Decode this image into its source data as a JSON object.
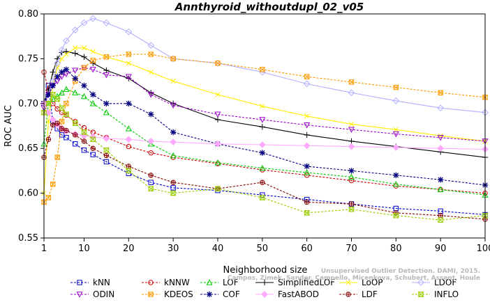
{
  "chart_data": {
    "type": "line",
    "title": "Annthyroid_withoutdupl_02_v05",
    "xlabel": "Neighborhood size",
    "ylabel": "ROC AUC",
    "xlim": [
      1,
      100
    ],
    "ylim": [
      0.55,
      0.8
    ],
    "xticks": [
      "1",
      "10",
      "20",
      "30",
      "40",
      "50",
      "60",
      "70",
      "80",
      "90",
      "100"
    ],
    "yticks": [
      "0.55",
      "0.60",
      "0.65",
      "0.70",
      "0.75",
      "0.80"
    ],
    "grid": false,
    "legend_position": "bottom",
    "watermark": [
      "Unsupervised Outlier Detection. DAMI, 2015.",
      "Campos, Zimek, Sander, Campello, Micenkova, Schubert, Assent, Houle"
    ],
    "series": [
      {
        "name": "kNN",
        "color": "#0000cc",
        "marker": "square",
        "line": "dashed",
        "x": [
          1,
          2,
          3,
          4,
          5,
          6,
          8,
          10,
          12,
          15,
          20,
          25,
          30,
          40,
          50,
          60,
          70,
          80,
          90,
          100
        ],
        "y": [
          0.7,
          0.72,
          0.68,
          0.672,
          0.665,
          0.662,
          0.655,
          0.648,
          0.643,
          0.635,
          0.622,
          0.612,
          0.606,
          0.603,
          0.598,
          0.593,
          0.588,
          0.583,
          0.58,
          0.576
        ]
      },
      {
        "name": "kNNW",
        "color": "#cc0000",
        "marker": "circle",
        "line": "dashed",
        "x": [
          1,
          2,
          3,
          4,
          5,
          6,
          8,
          10,
          12,
          15,
          20,
          25,
          30,
          40,
          50,
          60,
          70,
          80,
          90,
          100
        ],
        "y": [
          0.735,
          0.715,
          0.7,
          0.694,
          0.69,
          0.687,
          0.68,
          0.673,
          0.668,
          0.662,
          0.652,
          0.645,
          0.64,
          0.633,
          0.626,
          0.62,
          0.614,
          0.608,
          0.604,
          0.6
        ]
      },
      {
        "name": "LOF",
        "color": "#00cc00",
        "marker": "triangle",
        "line": "dashed",
        "x": [
          1,
          2,
          3,
          4,
          5,
          6,
          8,
          10,
          12,
          15,
          20,
          25,
          30,
          40,
          50,
          60,
          70,
          80,
          90,
          100
        ],
        "y": [
          0.655,
          0.7,
          0.705,
          0.708,
          0.712,
          0.716,
          0.712,
          0.708,
          0.7,
          0.69,
          0.672,
          0.655,
          0.642,
          0.634,
          0.628,
          0.623,
          0.618,
          0.61,
          0.604,
          0.598
        ]
      },
      {
        "name": "SimplifiedLOF",
        "color": "#000000",
        "marker": "plus",
        "line": "solid",
        "x": [
          1,
          2,
          3,
          4,
          5,
          6,
          8,
          10,
          12,
          15,
          20,
          25,
          30,
          40,
          50,
          60,
          70,
          80,
          90,
          100
        ],
        "y": [
          0.7,
          0.715,
          0.735,
          0.75,
          0.757,
          0.758,
          0.756,
          0.752,
          0.745,
          0.737,
          0.728,
          0.712,
          0.7,
          0.682,
          0.674,
          0.665,
          0.658,
          0.652,
          0.646,
          0.64
        ]
      },
      {
        "name": "LoOP",
        "color": "#ffee00",
        "marker": "x",
        "line": "solid",
        "x": [
          1,
          2,
          3,
          4,
          5,
          6,
          8,
          10,
          12,
          15,
          20,
          25,
          30,
          40,
          50,
          60,
          70,
          80,
          90,
          100
        ],
        "y": [
          0.6,
          0.68,
          0.72,
          0.74,
          0.75,
          0.755,
          0.762,
          0.762,
          0.758,
          0.752,
          0.745,
          0.735,
          0.725,
          0.71,
          0.697,
          0.686,
          0.677,
          0.671,
          0.664,
          0.658
        ]
      },
      {
        "name": "LDOF",
        "color": "#b0b0ff",
        "marker": "diamond",
        "line": "solid",
        "x": [
          1,
          2,
          3,
          4,
          5,
          6,
          8,
          10,
          12,
          15,
          20,
          25,
          30,
          40,
          50,
          60,
          70,
          80,
          90,
          100
        ],
        "y": [
          0.7,
          0.71,
          0.725,
          0.745,
          0.76,
          0.77,
          0.782,
          0.79,
          0.795,
          0.79,
          0.78,
          0.765,
          0.75,
          0.745,
          0.735,
          0.722,
          0.712,
          0.703,
          0.695,
          0.69
        ]
      },
      {
        "name": "ODIN",
        "color": "#9900cc",
        "marker": "triangle-down",
        "line": "dashed",
        "x": [
          1,
          2,
          3,
          4,
          5,
          6,
          8,
          10,
          12,
          15,
          20,
          25,
          30,
          40,
          50,
          60,
          70,
          80,
          90,
          100
        ],
        "y": [
          0.695,
          0.71,
          0.72,
          0.725,
          0.73,
          0.733,
          0.737,
          0.74,
          0.738,
          0.732,
          0.73,
          0.71,
          0.698,
          0.688,
          0.682,
          0.676,
          0.671,
          0.666,
          0.662,
          0.658
        ]
      },
      {
        "name": "KDEOS",
        "color": "#ff9900",
        "marker": "square-x",
        "line": "dashed",
        "x": [
          1,
          2,
          3,
          4,
          5,
          6,
          8,
          10,
          12,
          15,
          20,
          25,
          30,
          40,
          50,
          60,
          70,
          80,
          90,
          100
        ],
        "y": [
          0.59,
          0.595,
          0.61,
          0.64,
          0.68,
          0.7,
          0.725,
          0.74,
          0.748,
          0.752,
          0.755,
          0.755,
          0.75,
          0.745,
          0.738,
          0.73,
          0.724,
          0.718,
          0.712,
          0.707
        ]
      },
      {
        "name": "COF",
        "color": "#000080",
        "marker": "asterisk",
        "line": "dashed",
        "x": [
          1,
          2,
          3,
          4,
          5,
          6,
          8,
          10,
          12,
          15,
          20,
          25,
          30,
          40,
          50,
          60,
          70,
          80,
          90,
          100
        ],
        "y": [
          0.7,
          0.71,
          0.72,
          0.73,
          0.735,
          0.738,
          0.728,
          0.72,
          0.71,
          0.7,
          0.7,
          0.688,
          0.668,
          0.655,
          0.645,
          0.63,
          0.625,
          0.62,
          0.615,
          0.609
        ]
      },
      {
        "name": "FastABOD",
        "color": "#ffaaff",
        "marker": "diamond-filled",
        "line": "solid",
        "x": [
          1,
          2,
          3,
          4,
          5,
          6,
          8,
          10,
          12,
          15,
          20,
          25,
          30,
          40,
          50,
          60,
          70,
          80,
          90,
          100
        ],
        "y": [
          0.7,
          0.69,
          0.682,
          0.676,
          0.672,
          0.669,
          0.666,
          0.664,
          0.663,
          0.661,
          0.66,
          0.658,
          0.657,
          0.655,
          0.654,
          0.653,
          0.652,
          0.651,
          0.65,
          0.649
        ]
      },
      {
        "name": "LDF",
        "color": "#880000",
        "marker": "circle-plus",
        "line": "dashed",
        "x": [
          1,
          2,
          3,
          4,
          5,
          6,
          8,
          10,
          12,
          15,
          20,
          25,
          30,
          40,
          50,
          60,
          70,
          80,
          90,
          100
        ],
        "y": [
          0.64,
          0.66,
          0.676,
          0.678,
          0.672,
          0.67,
          0.665,
          0.658,
          0.65,
          0.642,
          0.63,
          0.62,
          0.612,
          0.605,
          0.612,
          0.59,
          0.588,
          0.578,
          0.575,
          0.571
        ]
      },
      {
        "name": "INFLO",
        "color": "#99cc00",
        "marker": "hourglass",
        "line": "dashed",
        "x": [
          1,
          2,
          3,
          4,
          5,
          6,
          8,
          10,
          12,
          15,
          20,
          25,
          30,
          40,
          50,
          60,
          70,
          80,
          90,
          100
        ],
        "y": [
          0.69,
          0.7,
          0.71,
          0.705,
          0.695,
          0.688,
          0.678,
          0.668,
          0.66,
          0.648,
          0.625,
          0.605,
          0.6,
          0.605,
          0.595,
          0.578,
          0.582,
          0.575,
          0.57,
          0.575
        ]
      }
    ],
    "legend_rows": [
      [
        "kNN",
        "kNNW",
        "LOF",
        "SimplifiedLOF",
        "LoOP",
        "LDOF"
      ],
      [
        "ODIN",
        "KDEOS",
        "COF",
        "FastABOD",
        "LDF",
        "INFLO"
      ]
    ]
  }
}
